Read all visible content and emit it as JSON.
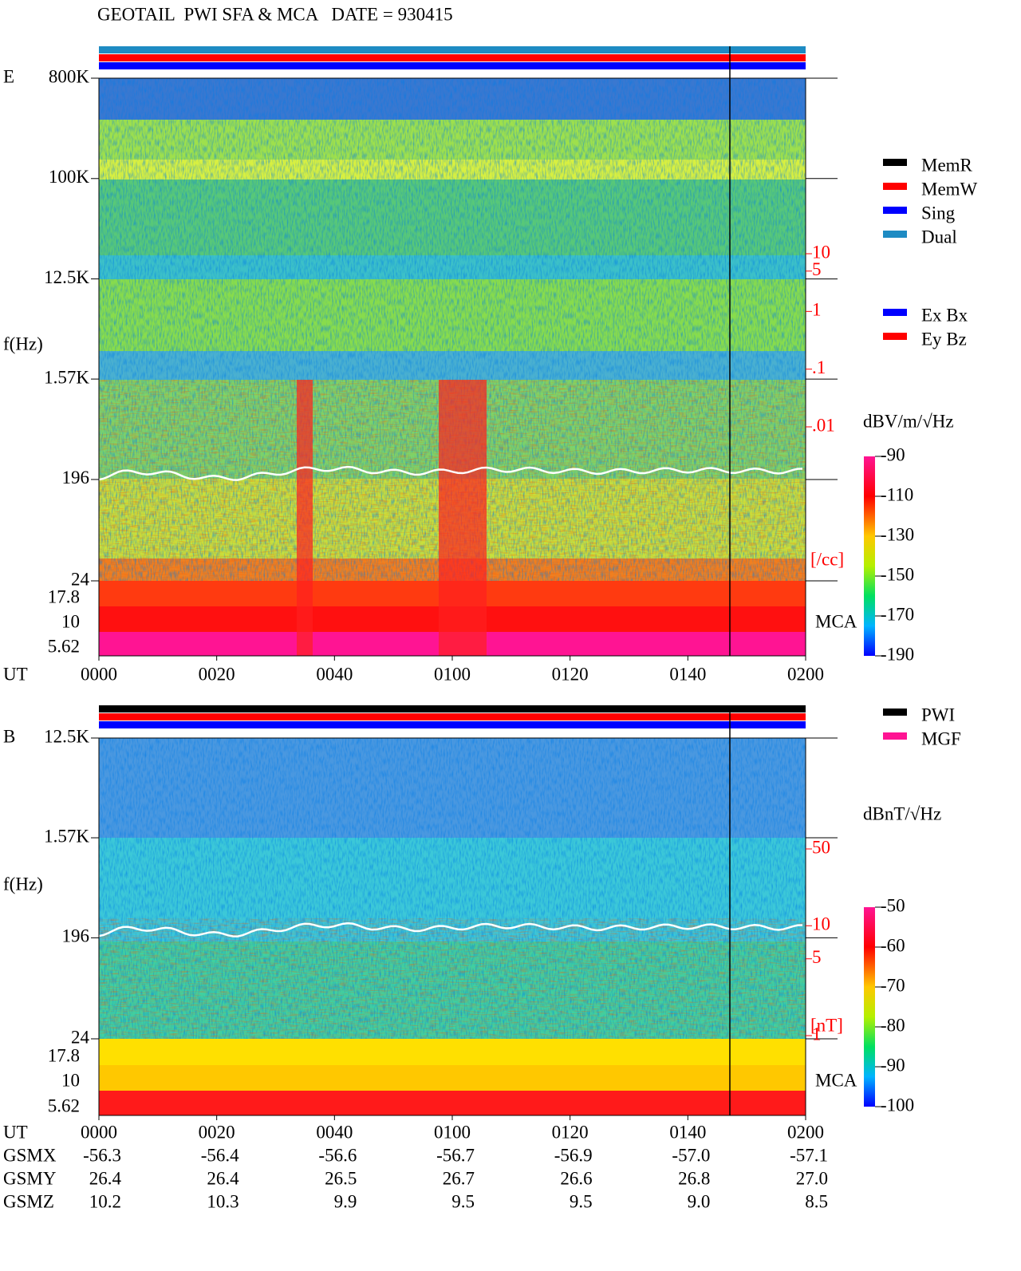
{
  "title": "GEOTAIL  PWI SFA & MCA   DATE = 930415",
  "ut_label": "UT",
  "ut_ticks": [
    "0000",
    "0020",
    "0040",
    "0100",
    "0120",
    "0140",
    "0200"
  ],
  "panels": [
    {
      "label": "E",
      "y_label": "f(Hz)",
      "log_y": true,
      "ylim": [
        24,
        800000
      ],
      "yticks": [
        {
          "value": 800000,
          "label": "800K"
        },
        {
          "value": 100000,
          "label": "100K"
        },
        {
          "value": 12500,
          "label": "12.5K"
        },
        {
          "value": 1570,
          "label": "1.57K"
        },
        196,
        24
      ],
      "mca_channels": [
        "17.8",
        "10",
        "5.62"
      ],
      "mca_label": "MCA",
      "right_scale": {
        "unit": "[/cc]",
        "lim": [
          0.01,
          10
        ],
        "ticks": [
          10,
          5,
          1,
          {
            "value": 0.1,
            "label": ".1"
          },
          {
            "value": 0.01,
            "label": ".01"
          }
        ]
      },
      "colorbar": {
        "unit": "dBV/m/√Hz",
        "clim": [
          -190,
          -90
        ],
        "ticks": [
          -90,
          -110,
          -130,
          -150,
          -170,
          -190
        ]
      },
      "legends": [
        [
          {
            "name": "MemR",
            "color": "#000000"
          },
          {
            "name": "MemW",
            "color": "#ff0000"
          },
          {
            "name": "Sing",
            "color": "#0000ff"
          },
          {
            "name": "Dual",
            "color": "#1e8bc3"
          }
        ],
        [
          {
            "name": "Ex Bx",
            "color": "#0000ff"
          },
          {
            "name": "Ey Bz",
            "color": "#ff0000"
          }
        ]
      ]
    },
    {
      "label": "B",
      "y_label": "f(Hz)",
      "log_y": true,
      "ylim": [
        24,
        12500
      ],
      "yticks": [
        {
          "value": 12500,
          "label": "12.5K"
        },
        {
          "value": 1570,
          "label": "1.57K"
        },
        196,
        24
      ],
      "mca_channels": [
        "17.8",
        "10",
        "5.62"
      ],
      "mca_label": "MCA",
      "right_scale": {
        "unit": "[nT]",
        "lim": [
          1,
          50
        ],
        "ticks": [
          50,
          10,
          5,
          1
        ]
      },
      "colorbar": {
        "unit": "dBnT/√Hz",
        "clim": [
          -100,
          -50
        ],
        "ticks": [
          -50,
          -60,
          -70,
          -80,
          -90,
          -100
        ]
      },
      "legends": [
        [
          {
            "name": "PWI",
            "color": "#000000"
          },
          {
            "name": "MGF",
            "color": "#ff1493"
          }
        ]
      ]
    }
  ],
  "orbit": [
    {
      "name": "GSMX",
      "values": [
        "-56.3",
        "-56.4",
        "-56.6",
        "-56.7",
        "-56.9",
        "-57.0",
        "-57.1"
      ]
    },
    {
      "name": "GSMY",
      "values": [
        "26.4",
        "26.4",
        "26.5",
        "26.7",
        "26.6",
        "26.8",
        "27.0"
      ]
    },
    {
      "name": "GSMZ",
      "values": [
        "10.2",
        "10.3",
        "9.9",
        "9.5",
        "9.5",
        "9.0",
        "8.5"
      ]
    }
  ]
}
